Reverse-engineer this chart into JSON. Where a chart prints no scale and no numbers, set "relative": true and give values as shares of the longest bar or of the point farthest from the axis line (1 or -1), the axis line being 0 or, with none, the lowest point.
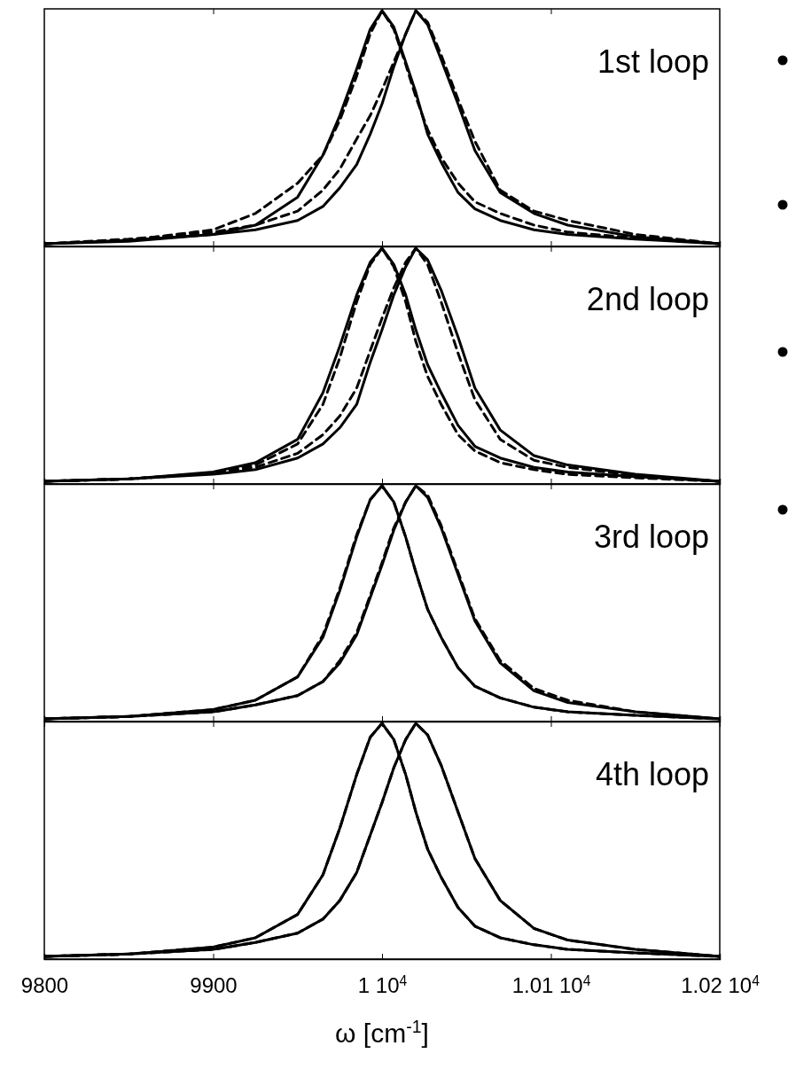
{
  "chart_data": [
    {
      "type": "line",
      "relative": true,
      "tick_labels": false,
      "annotations": [
        "1st loop"
      ],
      "xlim": [
        9800,
        10200
      ],
      "xticks": [
        {
          "value": 9900,
          "label": null
        },
        {
          "value": 10000,
          "label": null
        },
        {
          "value": 10100,
          "label": null
        }
      ],
      "x": [
        9800,
        9850,
        9900,
        9925,
        9950,
        9965,
        9975,
        9985,
        9993,
        10000,
        10007,
        10014,
        10020,
        10027,
        10035,
        10045,
        10055,
        10070,
        10090,
        10110,
        10150,
        10200
      ],
      "series": [
        {
          "color": "#000000",
          "line_style": "solid",
          "values": [
            0,
            0.01,
            0.04,
            0.08,
            0.2,
            0.38,
            0.55,
            0.75,
            0.92,
            1,
            0.93,
            0.78,
            0.65,
            0.47,
            0.35,
            0.22,
            0.15,
            0.1,
            0.06,
            0.04,
            0.02,
            0
          ]
        },
        {
          "color": "#000000",
          "line_style": "solid",
          "values": [
            0,
            0.015,
            0.04,
            0.06,
            0.1,
            0.16,
            0.24,
            0.34,
            0.47,
            0.6,
            0.76,
            0.9,
            1,
            0.94,
            0.79,
            0.6,
            0.4,
            0.22,
            0.13,
            0.08,
            0.03,
            0
          ]
        },
        {
          "color": "#000000",
          "line_style": "dashed",
          "values": [
            0,
            0.015,
            0.06,
            0.13,
            0.26,
            0.38,
            0.53,
            0.72,
            0.9,
            1,
            0.92,
            0.77,
            0.63,
            0.49,
            0.37,
            0.26,
            0.18,
            0.13,
            0.08,
            0.05,
            0.025,
            0
          ]
        },
        {
          "color": "#000000",
          "line_style": "dashed",
          "values": [
            0,
            0.02,
            0.05,
            0.08,
            0.14,
            0.23,
            0.32,
            0.45,
            0.55,
            0.66,
            0.78,
            0.9,
            1,
            0.95,
            0.81,
            0.62,
            0.44,
            0.23,
            0.14,
            0.1,
            0.04,
            0
          ]
        }
      ]
    },
    {
      "type": "line",
      "relative": true,
      "tick_labels": false,
      "annotations": [
        "2nd loop"
      ],
      "xlim": [
        9800,
        10200
      ],
      "xticks": [
        {
          "value": 9900,
          "label": null
        },
        {
          "value": 10000,
          "label": null
        },
        {
          "value": 10100,
          "label": null
        }
      ],
      "x": [
        9800,
        9850,
        9900,
        9925,
        9950,
        9965,
        9975,
        9985,
        9993,
        10000,
        10007,
        10014,
        10020,
        10027,
        10035,
        10045,
        10055,
        10070,
        10090,
        10110,
        10150,
        10200
      ],
      "series": [
        {
          "color": "#000000",
          "line_style": "solid",
          "values": [
            0,
            0.01,
            0.04,
            0.08,
            0.18,
            0.38,
            0.58,
            0.8,
            0.94,
            1,
            0.93,
            0.8,
            0.65,
            0.5,
            0.38,
            0.24,
            0.15,
            0.1,
            0.06,
            0.04,
            0.02,
            0
          ]
        },
        {
          "color": "#000000",
          "line_style": "solid",
          "values": [
            0,
            0.01,
            0.03,
            0.05,
            0.1,
            0.16,
            0.23,
            0.33,
            0.51,
            0.65,
            0.8,
            0.92,
            1,
            0.95,
            0.82,
            0.62,
            0.4,
            0.22,
            0.11,
            0.07,
            0.03,
            0
          ]
        },
        {
          "color": "#000000",
          "line_style": "dashed",
          "values": [
            0,
            0.01,
            0.035,
            0.07,
            0.16,
            0.33,
            0.53,
            0.77,
            0.93,
            1,
            0.92,
            0.77,
            0.6,
            0.45,
            0.33,
            0.2,
            0.13,
            0.08,
            0.05,
            0.03,
            0.015,
            0
          ]
        },
        {
          "color": "#000000",
          "line_style": "dashed",
          "values": [
            0,
            0.01,
            0.035,
            0.06,
            0.12,
            0.2,
            0.28,
            0.4,
            0.56,
            0.7,
            0.83,
            0.94,
            1,
            0.93,
            0.77,
            0.55,
            0.35,
            0.18,
            0.09,
            0.06,
            0.025,
            0
          ]
        }
      ]
    },
    {
      "type": "line",
      "relative": true,
      "tick_labels": false,
      "annotations": [
        "3rd loop"
      ],
      "xlim": [
        9800,
        10200
      ],
      "xticks": [
        {
          "value": 9900,
          "label": null
        },
        {
          "value": 10000,
          "label": null
        },
        {
          "value": 10100,
          "label": null
        }
      ],
      "x": [
        9800,
        9850,
        9900,
        9925,
        9950,
        9965,
        9975,
        9985,
        9993,
        10000,
        10007,
        10014,
        10020,
        10027,
        10035,
        10045,
        10055,
        10070,
        10090,
        10110,
        10150,
        10200
      ],
      "series": [
        {
          "color": "#000000",
          "line_style": "solid",
          "values": [
            0,
            0.01,
            0.04,
            0.08,
            0.18,
            0.35,
            0.55,
            0.78,
            0.94,
            1,
            0.93,
            0.78,
            0.63,
            0.47,
            0.35,
            0.22,
            0.14,
            0.09,
            0.05,
            0.03,
            0.015,
            0
          ]
        },
        {
          "color": "#000000",
          "line_style": "solid",
          "values": [
            0,
            0.01,
            0.03,
            0.06,
            0.1,
            0.16,
            0.24,
            0.36,
            0.52,
            0.66,
            0.81,
            0.93,
            1,
            0.95,
            0.82,
            0.62,
            0.42,
            0.24,
            0.12,
            0.07,
            0.03,
            0
          ]
        },
        {
          "color": "#000000",
          "line_style": "dashed",
          "values": [
            0,
            0.01,
            0.04,
            0.08,
            0.18,
            0.36,
            0.56,
            0.79,
            0.94,
            1,
            0.93,
            0.78,
            0.63,
            0.47,
            0.35,
            0.22,
            0.14,
            0.09,
            0.05,
            0.03,
            0.015,
            0
          ]
        },
        {
          "color": "#000000",
          "line_style": "dashed",
          "values": [
            0,
            0.01,
            0.03,
            0.06,
            0.1,
            0.16,
            0.25,
            0.37,
            0.53,
            0.67,
            0.82,
            0.93,
            1,
            0.96,
            0.83,
            0.63,
            0.43,
            0.25,
            0.13,
            0.08,
            0.03,
            0
          ]
        }
      ]
    },
    {
      "type": "line",
      "relative": true,
      "tick_labels": "x",
      "annotations": [
        "4th loop"
      ],
      "xlabel": "ω [cm$^{-1}$]",
      "xlim": [
        9800,
        10200
      ],
      "xticks": [
        9800,
        9900,
        {
          "value": 10000,
          "label": "1 10$^{4}$"
        },
        {
          "value": 10100,
          "label": "1.01 10$^{4}$"
        },
        {
          "value": 10200,
          "label": "1.02 10$^{4}$"
        }
      ],
      "x": [
        9800,
        9850,
        9900,
        9925,
        9950,
        9965,
        9975,
        9985,
        9993,
        10000,
        10007,
        10014,
        10020,
        10027,
        10035,
        10045,
        10055,
        10070,
        10090,
        10110,
        10150,
        10200
      ],
      "series": [
        {
          "color": "#000000",
          "line_style": "solid",
          "values": [
            0,
            0.01,
            0.04,
            0.08,
            0.18,
            0.35,
            0.55,
            0.78,
            0.94,
            1,
            0.93,
            0.78,
            0.62,
            0.46,
            0.34,
            0.21,
            0.13,
            0.08,
            0.05,
            0.03,
            0.015,
            0
          ]
        },
        {
          "color": "#000000",
          "line_style": "solid",
          "values": [
            0,
            0.01,
            0.03,
            0.06,
            0.1,
            0.16,
            0.24,
            0.36,
            0.52,
            0.66,
            0.81,
            0.93,
            1,
            0.95,
            0.82,
            0.62,
            0.42,
            0.24,
            0.12,
            0.07,
            0.03,
            0
          ]
        },
        {
          "color": "#000000",
          "line_style": "dashed",
          "values": [
            0,
            0.01,
            0.04,
            0.08,
            0.18,
            0.35,
            0.55,
            0.78,
            0.94,
            1,
            0.93,
            0.78,
            0.62,
            0.46,
            0.34,
            0.21,
            0.13,
            0.08,
            0.05,
            0.03,
            0.015,
            0
          ]
        },
        {
          "color": "#000000",
          "line_style": "dashed",
          "values": [
            0,
            0.01,
            0.03,
            0.06,
            0.1,
            0.16,
            0.24,
            0.36,
            0.52,
            0.66,
            0.81,
            0.93,
            1,
            0.95,
            0.82,
            0.62,
            0.42,
            0.24,
            0.12,
            0.07,
            0.03,
            0
          ]
        }
      ]
    }
  ]
}
